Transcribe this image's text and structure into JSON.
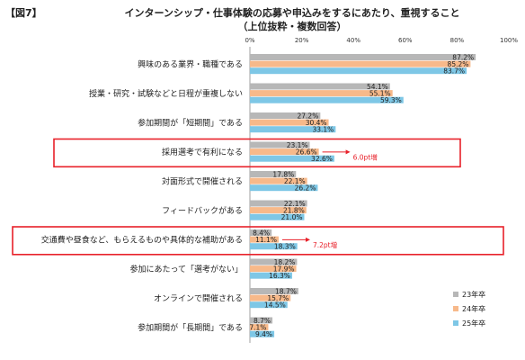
{
  "figure_label": "【図7】",
  "title_line1": "インターンシップ・仕事体験の応募や申込みをするにあたり、重視すること",
  "title_line2": "（上位抜粋・複数回答）",
  "chart_data": {
    "type": "bar",
    "orientation": "horizontal",
    "categories": [
      "興味のある業界・職種である",
      "授業・研究・試験などと日程が重複しない",
      "参加期間が「短期間」である",
      "採用選考で有利になる",
      "対面形式で開催される",
      "フィードバックがある",
      "交通費や昼食など、もらえるものや具体的な補助がある",
      "参加にあたって「選考がない」",
      "オンラインで開催される",
      "参加期間が「長期間」である"
    ],
    "series": [
      {
        "name": "23年卒",
        "color": "#b7b7b7",
        "values": [
          87.2,
          54.1,
          27.2,
          23.1,
          17.8,
          22.1,
          8.4,
          18.2,
          18.7,
          8.7
        ]
      },
      {
        "name": "24年卒",
        "color": "#f7b98a",
        "values": [
          85.2,
          55.1,
          30.4,
          26.6,
          22.1,
          21.8,
          11.1,
          17.9,
          15.7,
          7.1
        ]
      },
      {
        "name": "25年卒",
        "color": "#7ec7e6",
        "values": [
          83.7,
          59.3,
          33.1,
          32.6,
          26.2,
          21.0,
          18.3,
          16.3,
          14.5,
          9.4
        ]
      }
    ],
    "xticks": [
      "0%",
      "20%",
      "40%",
      "60%",
      "80%",
      "100%"
    ],
    "xlim": [
      0,
      100
    ],
    "legend_position": "bottom-right",
    "annotations": [
      {
        "category_index": 3,
        "text": "6.0pt増"
      },
      {
        "category_index": 6,
        "text": "7.2pt増"
      }
    ],
    "highlight_color": "#e8212a"
  }
}
